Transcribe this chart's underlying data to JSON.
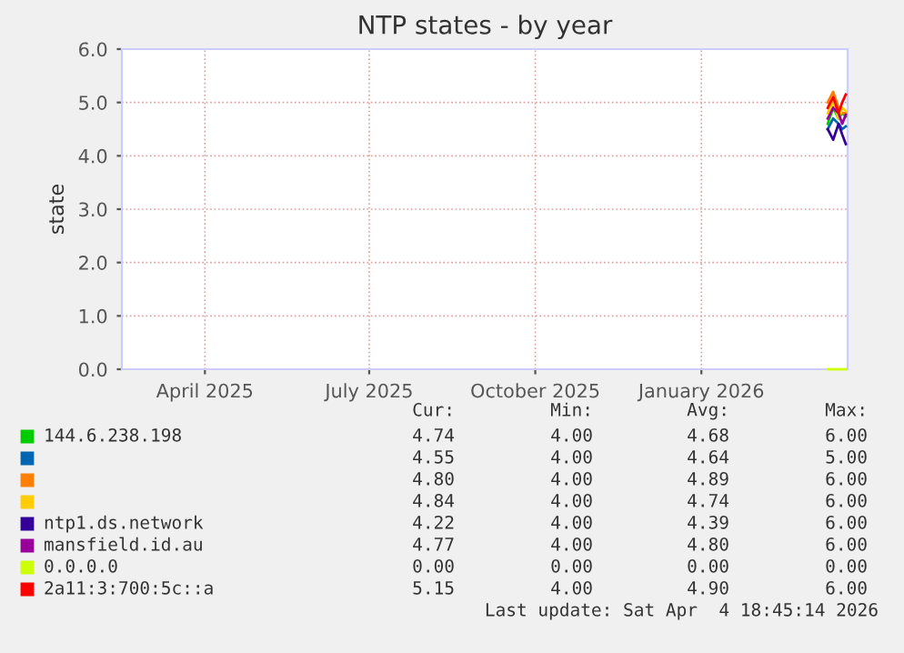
{
  "chart_data": {
    "type": "line",
    "title": "NTP states - by year",
    "ylabel": "state",
    "x": [
      "2026-03-12",
      "2026-03-15",
      "2026-03-18",
      "2026-03-20",
      "2026-03-22"
    ],
    "xlim": [
      "2025-02-14",
      "2026-03-23"
    ],
    "xticks": [
      {
        "value": "2025-04-01",
        "label": "April 2025"
      },
      {
        "value": "2025-07-01",
        "label": "July 2025"
      },
      {
        "value": "2025-10-01",
        "label": "October 2025"
      },
      {
        "value": "2026-01-01",
        "label": "January 2026"
      }
    ],
    "ylim": [
      0,
      6
    ],
    "yticks": [
      {
        "value": 0,
        "label": "0.0"
      },
      {
        "value": 1,
        "label": "1.0"
      },
      {
        "value": 2,
        "label": "2.0"
      },
      {
        "value": 3,
        "label": "3.0"
      },
      {
        "value": 4,
        "label": "4.0"
      },
      {
        "value": 5,
        "label": "5.0"
      },
      {
        "value": 6,
        "label": "6.0"
      }
    ],
    "grid": true,
    "legend": "bottom",
    "series": [
      {
        "name": "144.6.238.198",
        "color": "#00cc00",
        "values": [
          4.6,
          4.9,
          4.7,
          4.8,
          4.74
        ]
      },
      {
        "color": "#0066b3",
        "values": [
          4.5,
          4.7,
          4.6,
          4.5,
          4.55
        ]
      },
      {
        "color": "#ff8000",
        "values": [
          5.0,
          5.2,
          4.9,
          4.8,
          4.8
        ]
      },
      {
        "color": "#ffcc00",
        "values": [
          4.8,
          5.0,
          4.7,
          4.9,
          4.84
        ]
      },
      {
        "name": "ntp1.ds.network",
        "color": "#330099",
        "values": [
          4.5,
          4.3,
          4.6,
          4.4,
          4.22
        ]
      },
      {
        "name": "mansfield.id.au",
        "color": "#990099",
        "values": [
          4.7,
          4.9,
          4.8,
          4.6,
          4.77
        ]
      },
      {
        "name": "0.0.0.0",
        "color": "#ccff00",
        "values": [
          0,
          0,
          0,
          0,
          0
        ]
      },
      {
        "name": "2a11:3:700:5c::a",
        "color": "#ff0000",
        "values": [
          4.9,
          5.1,
          4.8,
          5.0,
          5.15
        ]
      }
    ],
    "annotations": [
      "Cur:",
      "Min:",
      "Avg:",
      "Max:",
      "4.74",
      "4.00",
      "4.68",
      "6.00",
      "4.55",
      "4.00",
      "4.64",
      "5.00",
      "4.80",
      "4.00",
      "4.89",
      "6.00",
      "4.84",
      "4.00",
      "4.74",
      "6.00",
      "4.22",
      "4.00",
      "4.39",
      "6.00",
      "4.77",
      "4.00",
      "4.80",
      "6.00",
      "0.00",
      "0.00",
      "0.00",
      "0.00",
      "5.15",
      "4.00",
      "4.90",
      "6.00",
      "Last update: Sat Apr  4 18:45:14 2026"
    ]
  }
}
